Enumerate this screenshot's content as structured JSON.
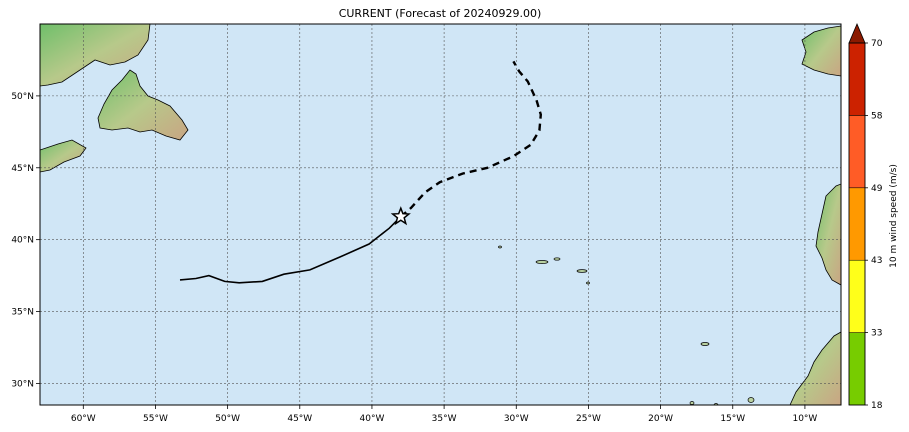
{
  "title": "CURRENT (Forecast of 20240929.00)",
  "map": {
    "lon_range": [
      -63,
      -7.5
    ],
    "lat_range": [
      28.5,
      55
    ],
    "x_ticks": [
      "60°W",
      "55°W",
      "50°W",
      "45°W",
      "40°W",
      "35°W",
      "30°W",
      "25°W",
      "20°W",
      "15°W",
      "10°W"
    ],
    "x_tick_values": [
      -60,
      -55,
      -50,
      -45,
      -40,
      -35,
      -30,
      -25,
      -20,
      -15,
      -10
    ],
    "y_ticks": [
      "30°N",
      "35°N",
      "40°N",
      "45°N",
      "50°N"
    ],
    "y_tick_values": [
      30,
      35,
      40,
      45,
      50
    ],
    "grid": true,
    "ocean_color": "#d0e6f6"
  },
  "track": {
    "past": [
      [
        -53.3,
        37.2
      ],
      [
        -52.2,
        37.3
      ],
      [
        -51.3,
        37.5
      ],
      [
        -50.2,
        37.1
      ],
      [
        -49.2,
        37.0
      ],
      [
        -47.6,
        37.1
      ],
      [
        -46.1,
        37.6
      ],
      [
        -44.3,
        37.9
      ],
      [
        -42.2,
        38.8
      ],
      [
        -40.2,
        39.7
      ],
      [
        -38.8,
        40.8
      ],
      [
        -38.0,
        41.6
      ]
    ],
    "forecast": [
      [
        -38.0,
        41.6
      ],
      [
        -37.3,
        42.2
      ],
      [
        -36.3,
        43.3
      ],
      [
        -35.3,
        44.0
      ],
      [
        -33.7,
        44.6
      ],
      [
        -32.0,
        45.0
      ],
      [
        -30.2,
        45.8
      ],
      [
        -29.0,
        46.6
      ],
      [
        -28.4,
        47.6
      ],
      [
        -28.3,
        48.7
      ],
      [
        -28.6,
        49.7
      ],
      [
        -29.2,
        51.0
      ],
      [
        -29.8,
        51.7
      ],
      [
        -30.2,
        52.4
      ]
    ],
    "current_position": [
      -38.0,
      41.6
    ],
    "current_marker": "star-icon"
  },
  "colorbar": {
    "label": "10 m wind speed (m/s)",
    "ticks": [
      "18",
      "33",
      "43",
      "49",
      "58",
      "70"
    ],
    "bands": [
      {
        "from": 18,
        "to": 33,
        "color": "#77cc00"
      },
      {
        "from": 33,
        "to": 43,
        "color": "#ffff1a"
      },
      {
        "from": 43,
        "to": 49,
        "color": "#ff9900"
      },
      {
        "from": 49,
        "to": 58,
        "color": "#ff5c26"
      },
      {
        "from": 58,
        "to": 70,
        "color": "#cc2200"
      }
    ],
    "extend_color": "#8b1a00"
  }
}
